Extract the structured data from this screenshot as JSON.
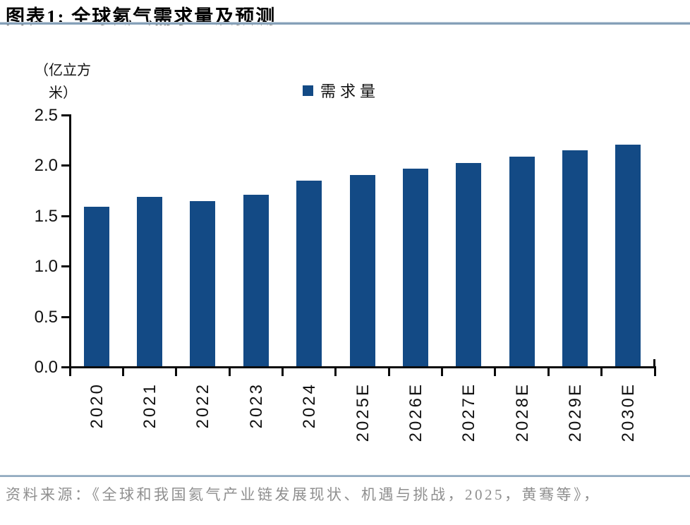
{
  "header": {
    "title": "图表1:  全球氦气需求量及预测"
  },
  "chart_data": {
    "type": "bar",
    "title": "全球氦气需求量及预测",
    "unit_label": "（亿立方米）",
    "legend_label": "需求量",
    "legend_position": "top-center",
    "categories": [
      "2020",
      "2021",
      "2022",
      "2023",
      "2024",
      "2025E",
      "2026E",
      "2027E",
      "2028E",
      "2029E",
      "2030E"
    ],
    "values": [
      1.58,
      1.68,
      1.64,
      1.7,
      1.84,
      1.9,
      1.96,
      2.02,
      2.08,
      2.14,
      2.2
    ],
    "xlabel": "",
    "ylabel": "（亿立方米）",
    "ylim": [
      0,
      2.5
    ],
    "yticks": [
      0.0,
      0.5,
      1.0,
      1.5,
      2.0,
      2.5
    ],
    "grid": false,
    "bar_color": "#134a85",
    "axis_color": "#0a0a0a"
  },
  "footer": {
    "source": "资料来源：《全球和我国氦气产业链发展现状、机遇与挑战，2025，黄骞等》，"
  }
}
